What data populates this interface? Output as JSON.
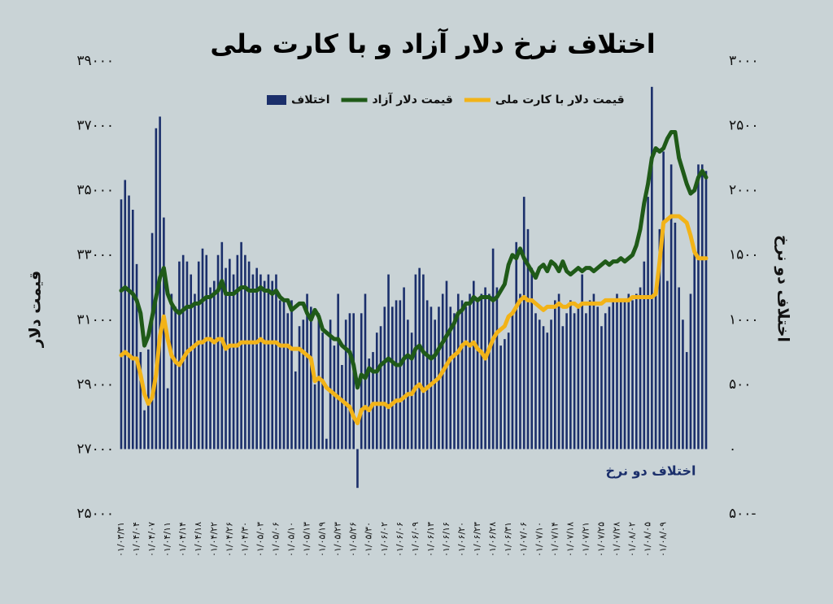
{
  "chart_data": {
    "type": "bar",
    "title": "اختلاف نرخ دلار آزاد و با کارت ملی",
    "y_label": "قیمت دلار",
    "y2_label": "اختلاف دو نرخ",
    "annotation": "اختلاف دو نرخ",
    "legend": "top",
    "grid": false,
    "ylim": [
      25000,
      39000
    ],
    "yticks": [
      {
        "value": 25000,
        "label": "۲۵۰۰۰"
      },
      {
        "value": 27000,
        "label": "۲۷۰۰۰"
      },
      {
        "value": 29000,
        "label": "۲۹۰۰۰"
      },
      {
        "value": 31000,
        "label": "۳۱۰۰۰"
      },
      {
        "value": 33000,
        "label": "۳۳۰۰۰"
      },
      {
        "value": 35000,
        "label": "۳۵۰۰۰"
      },
      {
        "value": 37000,
        "label": "۳۷۰۰۰"
      },
      {
        "value": 39000,
        "label": "۳۹۰۰۰"
      }
    ],
    "y2lim": [
      -500,
      3000
    ],
    "y2ticks": [
      {
        "value": -500,
        "label": "۵۰۰-"
      },
      {
        "value": 0,
        "label": "۰"
      },
      {
        "value": 500,
        "label": "۵۰۰"
      },
      {
        "value": 1000,
        "label": "۱۰۰۰"
      },
      {
        "value": 1500,
        "label": "۱۵۰۰"
      },
      {
        "value": 2000,
        "label": "۲۰۰۰"
      },
      {
        "value": 2500,
        "label": "۲۵۰۰"
      },
      {
        "value": 3000,
        "label": "۳۰۰۰"
      }
    ],
    "categories": [
      "۰۱/۰۳/۳۱",
      null,
      null,
      null,
      "۰۱/۰۴/۰۴",
      null,
      null,
      null,
      "۰۱/۰۴/۰۷",
      null,
      null,
      null,
      "۰۱/۰۴/۱۱",
      null,
      null,
      null,
      "۰۱/۰۴/۱۴",
      null,
      null,
      null,
      "۰۱/۰۴/۱۸",
      null,
      null,
      null,
      "۰۱/۰۴/۲۲",
      null,
      null,
      null,
      "۰۱/۰۴/۲۶",
      null,
      null,
      null,
      "۰۱/۰۴/۳۰",
      null,
      null,
      null,
      "۰۱/۰۵/۰۳",
      null,
      null,
      null,
      "۰۱/۰۵/۰۶",
      null,
      null,
      null,
      "۰۱/۰۵/۱۰",
      null,
      null,
      null,
      "۰۱/۰۵/۱۳",
      null,
      null,
      null,
      "۰۱/۰۵/۱۹",
      null,
      null,
      null,
      "۰۱/۰۵/۲۳",
      null,
      null,
      null,
      "۰۱/۰۵/۲۶",
      null,
      null,
      null,
      "۰۱/۰۵/۳۰",
      null,
      null,
      null,
      "۰۱/۰۶/۰۲",
      null,
      null,
      null,
      "۰۱/۰۶/۰۶",
      null,
      null,
      null,
      "۰۱/۰۶/۰۹",
      null,
      null,
      null,
      "۰۱/۰۶/۱۳",
      null,
      null,
      null,
      "۰۱/۰۶/۱۶",
      null,
      null,
      null,
      "۰۱/۰۶/۲۰",
      null,
      null,
      null,
      "۰۱/۰۶/۲۳",
      null,
      null,
      null,
      "۰۱/۰۶/۲۸",
      null,
      null,
      null,
      "۰۱/۰۶/۳۱",
      null,
      null,
      null,
      "۰۱/۰۷/۰۶",
      null,
      null,
      null,
      "۰۱/۰۷/۱۰",
      null,
      null,
      null,
      "۰۱/۰۷/۱۴",
      null,
      null,
      null,
      "۰۱/۰۷/۱۸",
      null,
      null,
      null,
      "۰۱/۰۷/۲۱",
      null,
      null,
      null,
      "۰۱/۰۷/۲۵",
      null,
      null,
      null,
      "۰۱/۰۷/۲۸",
      null,
      null,
      null,
      "۰۱/۰۸/۰۲",
      null,
      null,
      null,
      "۰۱/۰۸/۰۵",
      null,
      null,
      null,
      "۰۱/۰۸/۰۹",
      null,
      null,
      null,
      null,
      null,
      null,
      null,
      null,
      null,
      null,
      null
    ],
    "series": [
      {
        "name": "اختلاف",
        "type": "bar",
        "axis": "y2",
        "color": "#1b2f6b",
        "values": [
          1930,
          2080,
          1960,
          1850,
          1430,
          750,
          300,
          770,
          1670,
          2480,
          2570,
          1790,
          470,
          1200,
          1100,
          1450,
          1500,
          1450,
          1350,
          1200,
          1450,
          1550,
          1500,
          1250,
          1300,
          1500,
          1600,
          1400,
          1470,
          1350,
          1500,
          1600,
          1500,
          1450,
          1350,
          1400,
          1350,
          1300,
          1350,
          1300,
          1350,
          1150,
          1150,
          1050,
          1150,
          600,
          950,
          1000,
          1200,
          1100,
          500,
          1050,
          900,
          80,
          1000,
          800,
          1200,
          650,
          1000,
          1050,
          1050,
          -300,
          1050,
          1200,
          700,
          750,
          900,
          950,
          1100,
          1350,
          1100,
          1150,
          1150,
          1250,
          1000,
          900,
          1350,
          1400,
          1350,
          1150,
          1100,
          1000,
          1100,
          1200,
          1300,
          1100,
          1050,
          1200,
          1150,
          1100,
          1200,
          1300,
          1150,
          1200,
          1250,
          1200,
          1550,
          1250,
          800,
          850,
          900,
          1050,
          1600,
          1200,
          1950,
          1700,
          1400,
          1050,
          1000,
          950,
          900,
          1000,
          1150,
          1200,
          950,
          1050,
          1150,
          1050,
          1100,
          1350,
          1050,
          1150,
          1200,
          1100,
          950,
          1050,
          1100,
          1150,
          1200,
          1150,
          1150,
          1200,
          1150,
          1200,
          1250,
          1450,
          1950,
          2800,
          1250,
          1700,
          2300,
          1300,
          2200,
          1750,
          1250,
          1000,
          750,
          1200,
          1550,
          2200,
          2200,
          2150
        ]
      },
      {
        "name": "قیمت دلار آزاد",
        "type": "line",
        "color": "#1f5a18",
        "values": [
          31900,
          32000,
          31900,
          31800,
          31600,
          31200,
          30200,
          30500,
          31100,
          31700,
          32300,
          32600,
          31800,
          31500,
          31300,
          31200,
          31300,
          31400,
          31400,
          31500,
          31500,
          31600,
          31700,
          31700,
          31800,
          31900,
          32200,
          31800,
          31800,
          31800,
          31900,
          32000,
          32000,
          31900,
          31900,
          31900,
          32000,
          31900,
          31900,
          31800,
          31900,
          31700,
          31600,
          31600,
          31300,
          31400,
          31500,
          31500,
          31200,
          31000,
          31300,
          31100,
          30700,
          30600,
          30500,
          30400,
          30400,
          30200,
          30100,
          30000,
          29600,
          28900,
          29300,
          29200,
          29500,
          29400,
          29400,
          29600,
          29700,
          29800,
          29700,
          29600,
          29600,
          29800,
          29900,
          29800,
          30100,
          30200,
          30000,
          29900,
          29800,
          29900,
          30100,
          30300,
          30500,
          30700,
          30900,
          31200,
          31300,
          31500,
          31500,
          31700,
          31600,
          31700,
          31700,
          31700,
          31600,
          31700,
          31900,
          32100,
          32700,
          33000,
          32900,
          33200,
          32900,
          32700,
          32500,
          32300,
          32600,
          32700,
          32500,
          32800,
          32700,
          32500,
          32800,
          32500,
          32400,
          32500,
          32600,
          32500,
          32600,
          32600,
          32500,
          32600,
          32700,
          32800,
          32700,
          32800,
          32800,
          32900,
          32800,
          32900,
          33000,
          33300,
          33800,
          34600,
          35200,
          36000,
          36300,
          36200,
          36300,
          36600,
          36800,
          36800,
          36000,
          35600,
          35200,
          34900,
          35000,
          35400,
          35600,
          35400
        ]
      },
      {
        "name": "قیمت دلار با کارت ملی",
        "type": "line",
        "color": "#f2b318",
        "values": [
          29900,
          30000,
          29900,
          29800,
          29800,
          29300,
          28700,
          28400,
          28600,
          29300,
          30500,
          31100,
          30400,
          29900,
          29700,
          29600,
          29800,
          30000,
          30100,
          30200,
          30300,
          30300,
          30400,
          30400,
          30300,
          30400,
          30400,
          30100,
          30200,
          30200,
          30200,
          30300,
          30300,
          30300,
          30300,
          30300,
          30400,
          30300,
          30300,
          30300,
          30300,
          30200,
          30200,
          30200,
          30100,
          30100,
          30100,
          30000,
          29900,
          29800,
          29100,
          29200,
          29100,
          28900,
          28800,
          28700,
          28600,
          28500,
          28400,
          28300,
          28000,
          27800,
          28200,
          28300,
          28200,
          28400,
          28400,
          28400,
          28400,
          28300,
          28400,
          28500,
          28500,
          28600,
          28700,
          28700,
          28900,
          29000,
          28800,
          28900,
          29000,
          29100,
          29200,
          29400,
          29600,
          29800,
          29900,
          30000,
          30200,
          30300,
          30200,
          30300,
          30100,
          30000,
          29800,
          30100,
          30400,
          30600,
          30700,
          30800,
          31100,
          31200,
          31400,
          31600,
          31700,
          31600,
          31600,
          31500,
          31400,
          31300,
          31400,
          31400,
          31400,
          31500,
          31400,
          31400,
          31500,
          31500,
          31400,
          31500,
          31500,
          31500,
          31500,
          31500,
          31500,
          31600,
          31600,
          31600,
          31600,
          31600,
          31600,
          31600,
          31700,
          31700,
          31700,
          31700,
          31700,
          31700,
          31800,
          32800,
          34000,
          34100,
          34200,
          34200,
          34200,
          34100,
          34000,
          33600,
          33100,
          32900,
          32900,
          32900
        ]
      }
    ]
  }
}
